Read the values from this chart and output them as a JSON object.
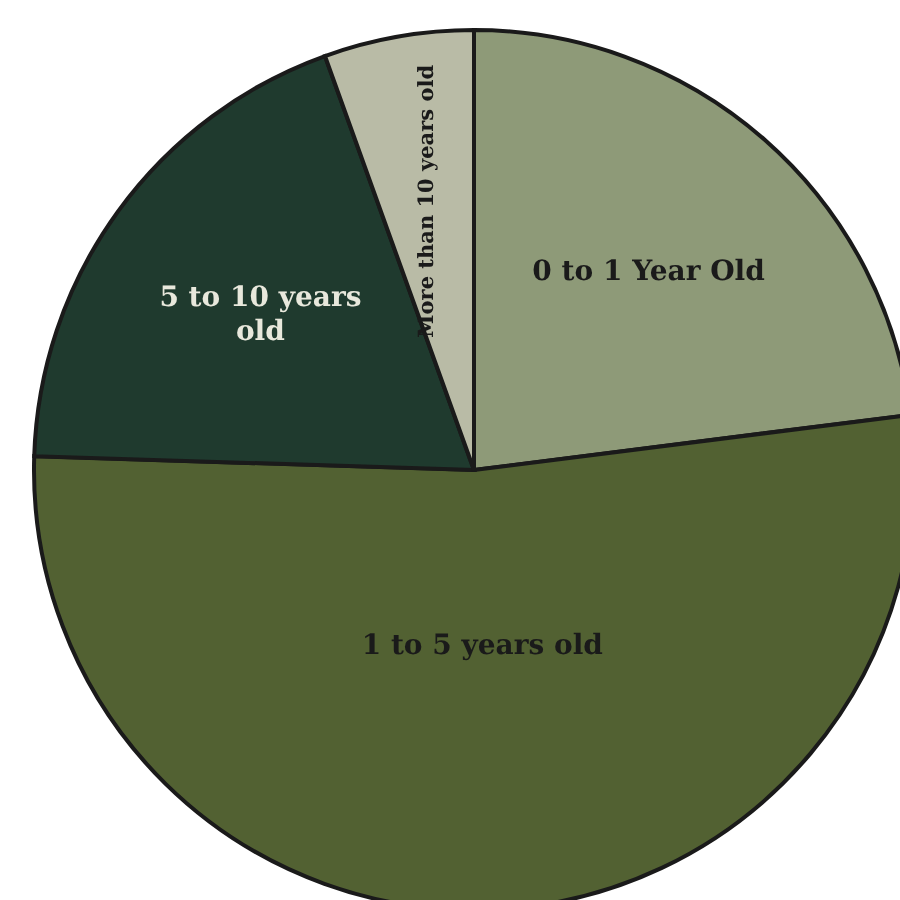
{
  "chart_data": {
    "type": "pie",
    "categories": [
      "0 to 1 Year Old",
      "1 to 5 years old",
      "5 to 10 years old",
      "More than 10 years old"
    ],
    "values": [
      23,
      52.5,
      19,
      5.5
    ],
    "colors": [
      "#8e9a78",
      "#526132",
      "#1f3a2e",
      "#b9bba6"
    ]
  }
}
